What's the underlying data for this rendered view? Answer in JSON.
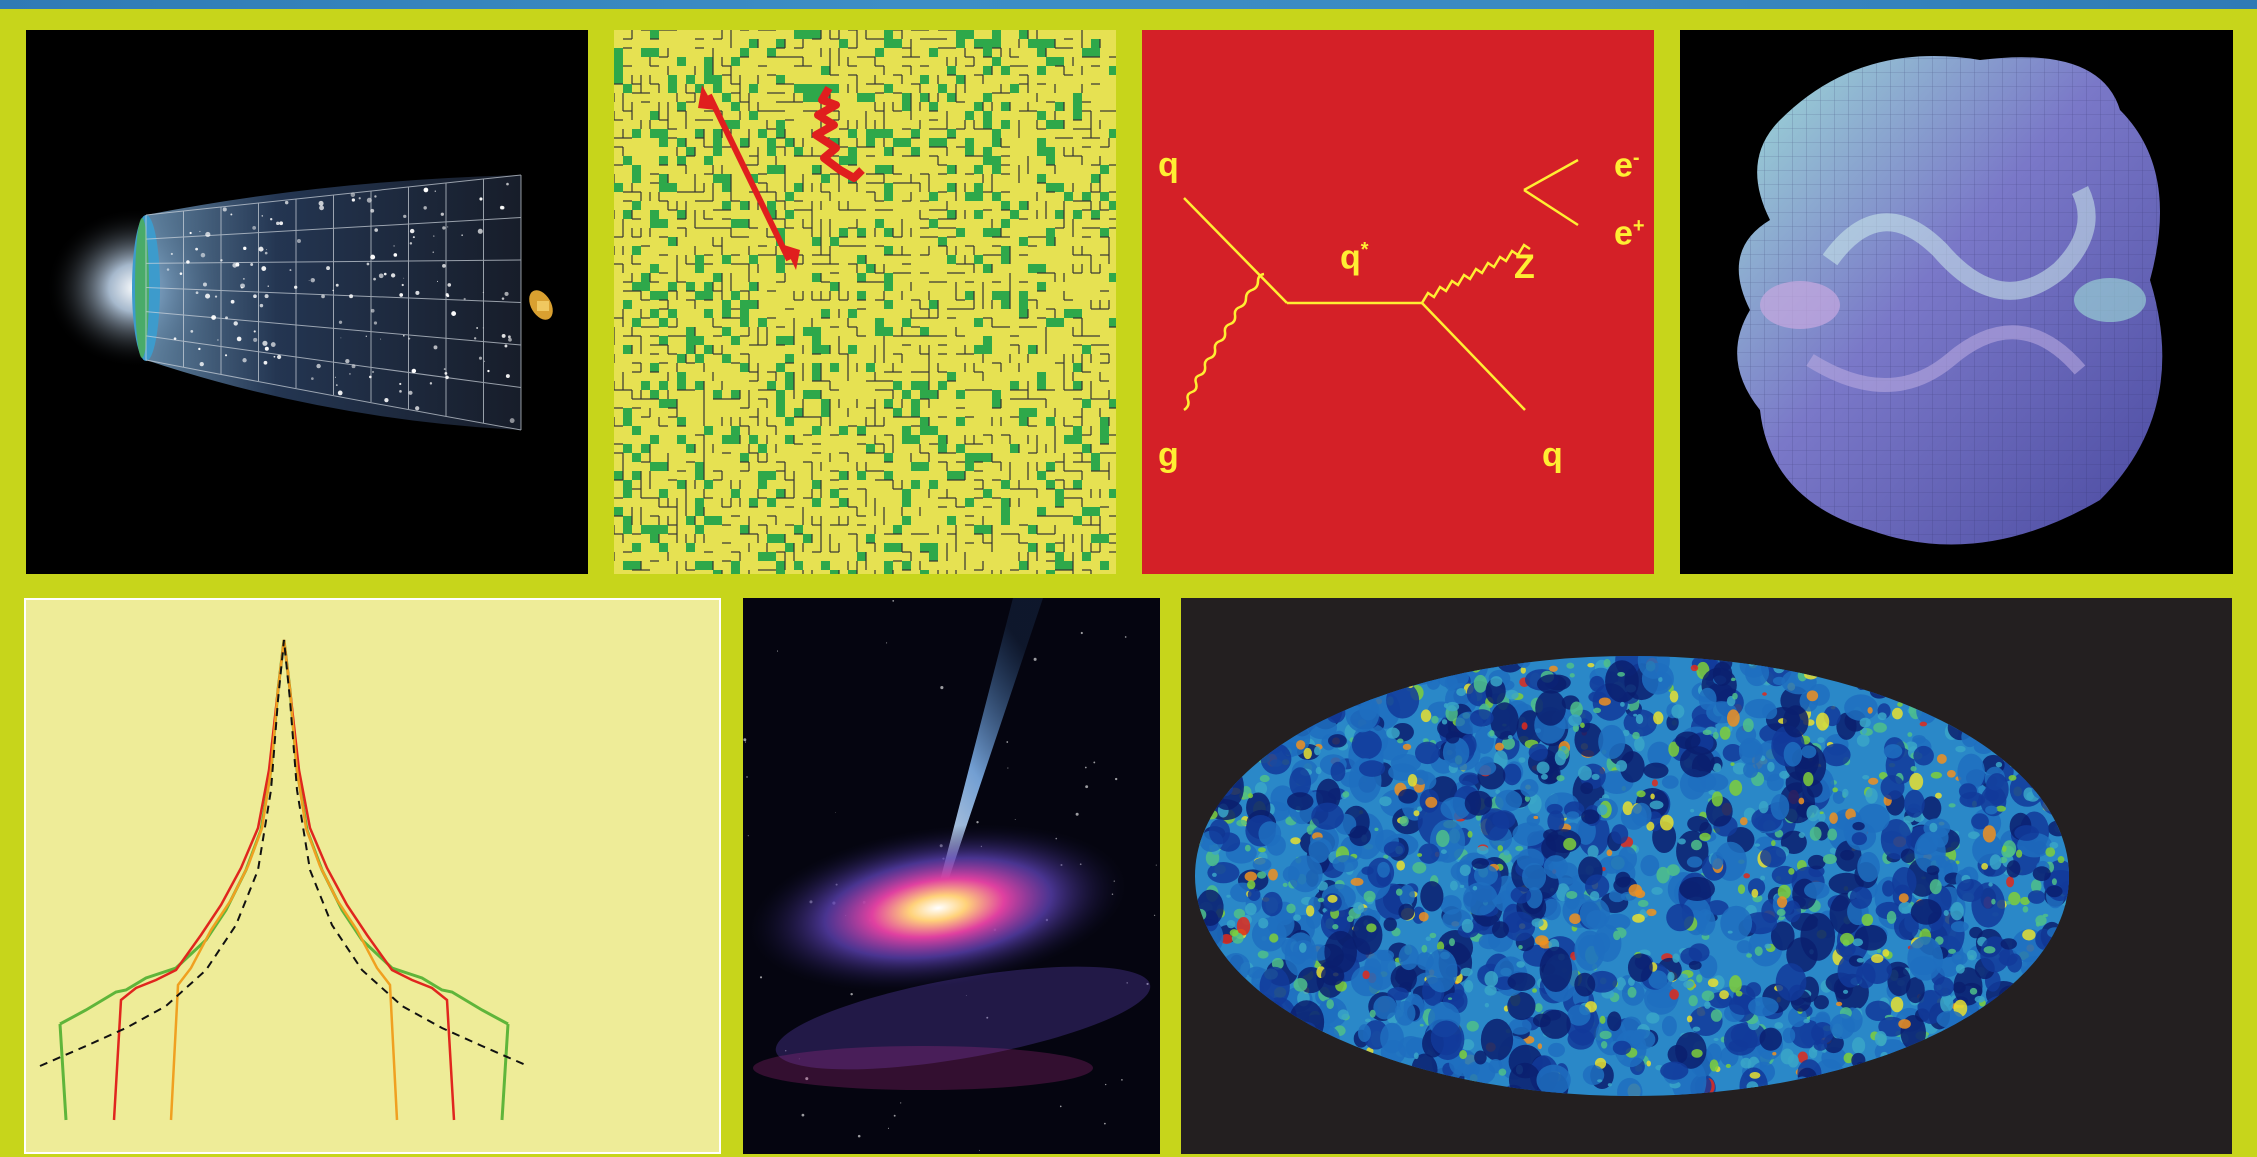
{
  "feynman": {
    "labels": {
      "q_in": "q",
      "g_in": "g",
      "q_star": "q",
      "q_star_sup": "*",
      "z": "Z",
      "e_minus": "e",
      "e_minus_sup": "-",
      "e_plus": "e",
      "e_plus_sup": "+",
      "q_out": "q"
    },
    "colors": {
      "line": "#ffee33",
      "background": "#d42027"
    }
  },
  "colors": {
    "frame": "#c7d51b",
    "topbar": "#3a89c2",
    "lattice_yellow": "#e6e152",
    "lattice_green": "#2ea84a",
    "spectra_bg": "#eeec98",
    "spectra_green": "#5fb53a",
    "spectra_red": "#e0261e",
    "spectra_orange": "#f0a020"
  }
}
